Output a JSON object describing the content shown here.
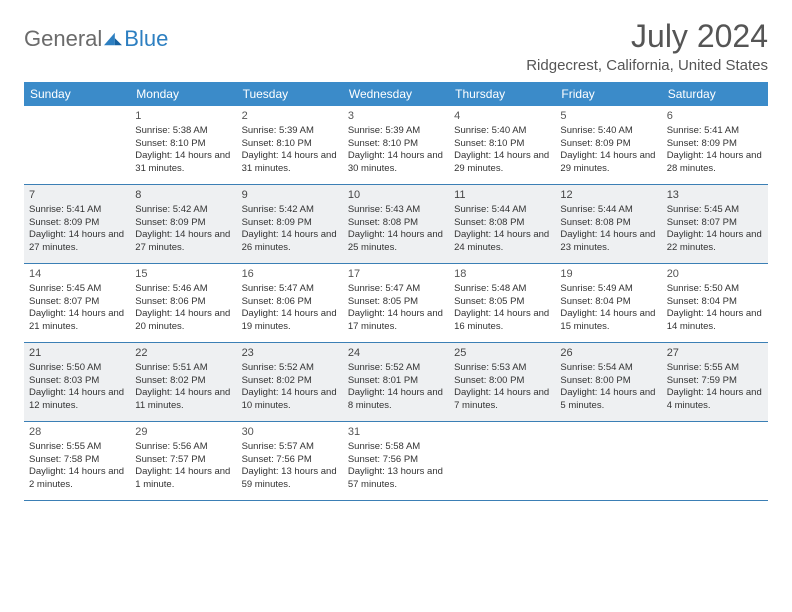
{
  "logo": {
    "text1": "General",
    "text2": "Blue"
  },
  "title": "July 2024",
  "location": "Ridgecrest, California, United States",
  "colors": {
    "header_bg": "#3b8bc9",
    "row_border": "#3b7fb5",
    "alt_bg": "#eef0f2",
    "logo_gray": "#6b6b6b",
    "logo_blue": "#2d7fc1"
  },
  "weekdays": [
    "Sunday",
    "Monday",
    "Tuesday",
    "Wednesday",
    "Thursday",
    "Friday",
    "Saturday"
  ],
  "weeks": [
    [
      {
        "day": "",
        "lines": []
      },
      {
        "day": "1",
        "lines": [
          "Sunrise: 5:38 AM",
          "Sunset: 8:10 PM",
          "Daylight: 14 hours and 31 minutes."
        ]
      },
      {
        "day": "2",
        "lines": [
          "Sunrise: 5:39 AM",
          "Sunset: 8:10 PM",
          "Daylight: 14 hours and 31 minutes."
        ]
      },
      {
        "day": "3",
        "lines": [
          "Sunrise: 5:39 AM",
          "Sunset: 8:10 PM",
          "Daylight: 14 hours and 30 minutes."
        ]
      },
      {
        "day": "4",
        "lines": [
          "Sunrise: 5:40 AM",
          "Sunset: 8:10 PM",
          "Daylight: 14 hours and 29 minutes."
        ]
      },
      {
        "day": "5",
        "lines": [
          "Sunrise: 5:40 AM",
          "Sunset: 8:09 PM",
          "Daylight: 14 hours and 29 minutes."
        ]
      },
      {
        "day": "6",
        "lines": [
          "Sunrise: 5:41 AM",
          "Sunset: 8:09 PM",
          "Daylight: 14 hours and 28 minutes."
        ]
      }
    ],
    [
      {
        "day": "7",
        "lines": [
          "Sunrise: 5:41 AM",
          "Sunset: 8:09 PM",
          "Daylight: 14 hours and 27 minutes."
        ]
      },
      {
        "day": "8",
        "lines": [
          "Sunrise: 5:42 AM",
          "Sunset: 8:09 PM",
          "Daylight: 14 hours and 27 minutes."
        ]
      },
      {
        "day": "9",
        "lines": [
          "Sunrise: 5:42 AM",
          "Sunset: 8:09 PM",
          "Daylight: 14 hours and 26 minutes."
        ]
      },
      {
        "day": "10",
        "lines": [
          "Sunrise: 5:43 AM",
          "Sunset: 8:08 PM",
          "Daylight: 14 hours and 25 minutes."
        ]
      },
      {
        "day": "11",
        "lines": [
          "Sunrise: 5:44 AM",
          "Sunset: 8:08 PM",
          "Daylight: 14 hours and 24 minutes."
        ]
      },
      {
        "day": "12",
        "lines": [
          "Sunrise: 5:44 AM",
          "Sunset: 8:08 PM",
          "Daylight: 14 hours and 23 minutes."
        ]
      },
      {
        "day": "13",
        "lines": [
          "Sunrise: 5:45 AM",
          "Sunset: 8:07 PM",
          "Daylight: 14 hours and 22 minutes."
        ]
      }
    ],
    [
      {
        "day": "14",
        "lines": [
          "Sunrise: 5:45 AM",
          "Sunset: 8:07 PM",
          "Daylight: 14 hours and 21 minutes."
        ]
      },
      {
        "day": "15",
        "lines": [
          "Sunrise: 5:46 AM",
          "Sunset: 8:06 PM",
          "Daylight: 14 hours and 20 minutes."
        ]
      },
      {
        "day": "16",
        "lines": [
          "Sunrise: 5:47 AM",
          "Sunset: 8:06 PM",
          "Daylight: 14 hours and 19 minutes."
        ]
      },
      {
        "day": "17",
        "lines": [
          "Sunrise: 5:47 AM",
          "Sunset: 8:05 PM",
          "Daylight: 14 hours and 17 minutes."
        ]
      },
      {
        "day": "18",
        "lines": [
          "Sunrise: 5:48 AM",
          "Sunset: 8:05 PM",
          "Daylight: 14 hours and 16 minutes."
        ]
      },
      {
        "day": "19",
        "lines": [
          "Sunrise: 5:49 AM",
          "Sunset: 8:04 PM",
          "Daylight: 14 hours and 15 minutes."
        ]
      },
      {
        "day": "20",
        "lines": [
          "Sunrise: 5:50 AM",
          "Sunset: 8:04 PM",
          "Daylight: 14 hours and 14 minutes."
        ]
      }
    ],
    [
      {
        "day": "21",
        "lines": [
          "Sunrise: 5:50 AM",
          "Sunset: 8:03 PM",
          "Daylight: 14 hours and 12 minutes."
        ]
      },
      {
        "day": "22",
        "lines": [
          "Sunrise: 5:51 AM",
          "Sunset: 8:02 PM",
          "Daylight: 14 hours and 11 minutes."
        ]
      },
      {
        "day": "23",
        "lines": [
          "Sunrise: 5:52 AM",
          "Sunset: 8:02 PM",
          "Daylight: 14 hours and 10 minutes."
        ]
      },
      {
        "day": "24",
        "lines": [
          "Sunrise: 5:52 AM",
          "Sunset: 8:01 PM",
          "Daylight: 14 hours and 8 minutes."
        ]
      },
      {
        "day": "25",
        "lines": [
          "Sunrise: 5:53 AM",
          "Sunset: 8:00 PM",
          "Daylight: 14 hours and 7 minutes."
        ]
      },
      {
        "day": "26",
        "lines": [
          "Sunrise: 5:54 AM",
          "Sunset: 8:00 PM",
          "Daylight: 14 hours and 5 minutes."
        ]
      },
      {
        "day": "27",
        "lines": [
          "Sunrise: 5:55 AM",
          "Sunset: 7:59 PM",
          "Daylight: 14 hours and 4 minutes."
        ]
      }
    ],
    [
      {
        "day": "28",
        "lines": [
          "Sunrise: 5:55 AM",
          "Sunset: 7:58 PM",
          "Daylight: 14 hours and 2 minutes."
        ]
      },
      {
        "day": "29",
        "lines": [
          "Sunrise: 5:56 AM",
          "Sunset: 7:57 PM",
          "Daylight: 14 hours and 1 minute."
        ]
      },
      {
        "day": "30",
        "lines": [
          "Sunrise: 5:57 AM",
          "Sunset: 7:56 PM",
          "Daylight: 13 hours and 59 minutes."
        ]
      },
      {
        "day": "31",
        "lines": [
          "Sunrise: 5:58 AM",
          "Sunset: 7:56 PM",
          "Daylight: 13 hours and 57 minutes."
        ]
      },
      {
        "day": "",
        "lines": []
      },
      {
        "day": "",
        "lines": []
      },
      {
        "day": "",
        "lines": []
      }
    ]
  ]
}
